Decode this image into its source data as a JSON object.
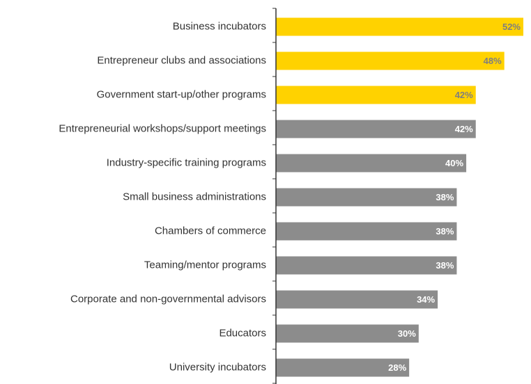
{
  "chart_data": {
    "type": "hbar",
    "categories": [
      "Business incubators",
      "Entrepreneur clubs and associations",
      "Government start-up/other programs",
      "Entrepreneurial workshops/support meetings",
      "Industry-specific training programs",
      "Small business administrations",
      "Chambers of commerce",
      "Teaming/mentor programs",
      "Corporate and non-governmental advisors",
      "Educators",
      "University incubators"
    ],
    "values": [
      52,
      48,
      42,
      42,
      40,
      38,
      38,
      38,
      34,
      30,
      28
    ],
    "value_labels": [
      "52%",
      "48%",
      "42%",
      "42%",
      "40%",
      "38%",
      "38%",
      "38%",
      "34%",
      "30%",
      "28%"
    ],
    "colors": [
      "#ffd200",
      "#ffd200",
      "#ffd200",
      "#8c8c8c",
      "#8c8c8c",
      "#8c8c8c",
      "#8c8c8c",
      "#8c8c8c",
      "#8c8c8c",
      "#8c8c8c",
      "#8c8c8c"
    ],
    "label_colors": [
      "#7f7f7f",
      "#7f7f7f",
      "#7f7f7f",
      "#ffffff",
      "#ffffff",
      "#ffffff",
      "#ffffff",
      "#ffffff",
      "#ffffff",
      "#ffffff",
      "#ffffff"
    ]
  }
}
